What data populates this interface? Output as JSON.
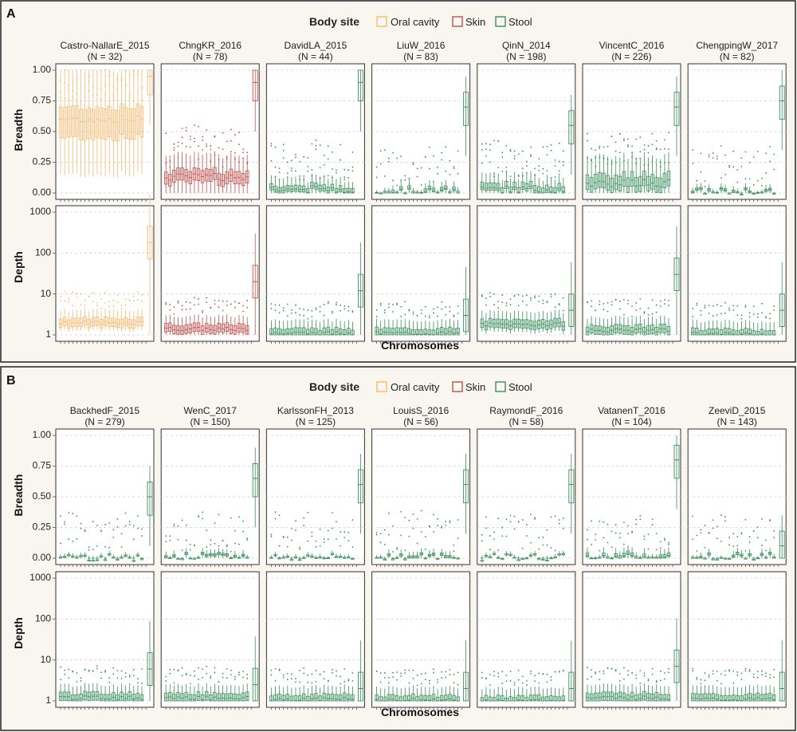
{
  "legend": {
    "title": "Body site",
    "items": [
      {
        "label": "Oral cavity",
        "color": "#f5b971"
      },
      {
        "label": "Skin",
        "color": "#c0504d"
      },
      {
        "label": "Stool",
        "color": "#3a8f5b"
      }
    ]
  },
  "x_axis_title": "Chromosomes",
  "row_labels": {
    "breadth": "Breadth",
    "depth": "Depth"
  },
  "breadth_ticks": [
    "1.00",
    "0.75",
    "0.50",
    "0.25",
    "0.00"
  ],
  "depth_ticks": [
    "1000",
    "100",
    "10",
    "1"
  ],
  "chart_data": [
    {
      "panel": "A",
      "type": "boxplot",
      "ylabel_top": "Breadth",
      "ylabel_bottom": "Depth",
      "xlabel": "Chromosomes",
      "breadth_ylim": [
        0,
        1
      ],
      "depth_scale": "log10",
      "depth_ylim": [
        1,
        1000
      ],
      "datasets": [
        {
          "name": "Castro-NallarE_2015",
          "n": "(N = 32)",
          "site": "oral",
          "breadth_median": 0.6,
          "breadth_q1": 0.45,
          "breadth_q3": 0.7,
          "depth_median": 2,
          "plasmid_breadth": 0.95,
          "plasmid_depth": 180
        },
        {
          "name": "ChngKR_2016",
          "n": "(N = 78)",
          "site": "skin",
          "breadth_median": 0.13,
          "breadth_q1": 0.08,
          "breadth_q3": 0.18,
          "depth_median": 1.4,
          "plasmid_breadth": 0.9,
          "plasmid_depth": 20
        },
        {
          "name": "DavidLA_2015",
          "n": "(N = 44)",
          "site": "stool",
          "breadth_median": 0.03,
          "breadth_q1": 0.01,
          "breadth_q3": 0.06,
          "depth_median": 1.1,
          "plasmid_breadth": 0.9,
          "plasmid_depth": 12
        },
        {
          "name": "LiuW_2016",
          "n": "(N = 83)",
          "site": "stool",
          "breadth_median": 0.01,
          "breadth_q1": 0.0,
          "breadth_q3": 0.03,
          "depth_median": 1.1,
          "plasmid_breadth": 0.7,
          "plasmid_depth": 3
        },
        {
          "name": "QinN_2014",
          "n": "(N = 198)",
          "site": "stool",
          "breadth_median": 0.03,
          "breadth_q1": 0.01,
          "breadth_q3": 0.07,
          "depth_median": 1.8,
          "plasmid_breadth": 0.55,
          "plasmid_depth": 4
        },
        {
          "name": "VincentC_2016",
          "n": "(N = 226)",
          "site": "stool",
          "breadth_median": 0.08,
          "breadth_q1": 0.03,
          "breadth_q3": 0.15,
          "depth_median": 1.3,
          "plasmid_breadth": 0.7,
          "plasmid_depth": 30
        },
        {
          "name": "ChengpingW_2017",
          "n": "(N = 82)",
          "site": "stool",
          "breadth_median": 0.01,
          "breadth_q1": 0.0,
          "breadth_q3": 0.02,
          "depth_median": 1.05,
          "plasmid_breadth": 0.75,
          "plasmid_depth": 4
        }
      ]
    },
    {
      "panel": "B",
      "type": "boxplot",
      "ylabel_top": "Breadth",
      "ylabel_bottom": "Depth",
      "xlabel": "Chromosomes",
      "breadth_ylim": [
        0,
        1
      ],
      "depth_scale": "log10",
      "depth_ylim": [
        1,
        1000
      ],
      "datasets": [
        {
          "name": "BackhedF_2015",
          "n": "(N = 279)",
          "site": "stool",
          "breadth_median": 0.0,
          "breadth_q1": 0.0,
          "breadth_q3": 0.01,
          "depth_median": 1.2,
          "plasmid_breadth": 0.5,
          "plasmid_depth": 6
        },
        {
          "name": "WenC_2017",
          "n": "(N = 150)",
          "site": "stool",
          "breadth_median": 0.01,
          "breadth_q1": 0.0,
          "breadth_q3": 0.02,
          "depth_median": 1.2,
          "plasmid_breadth": 0.65,
          "plasmid_depth": 2.5
        },
        {
          "name": "KarlssonFH_2013",
          "n": "(N = 125)",
          "site": "stool",
          "breadth_median": 0.0,
          "breadth_q1": 0.0,
          "breadth_q3": 0.01,
          "depth_median": 1.1,
          "plasmid_breadth": 0.6,
          "plasmid_depth": 2
        },
        {
          "name": "LouisS_2016",
          "n": "(N = 56)",
          "site": "stool",
          "breadth_median": 0.01,
          "breadth_q1": 0.0,
          "breadth_q3": 0.02,
          "depth_median": 1.05,
          "plasmid_breadth": 0.6,
          "plasmid_depth": 2
        },
        {
          "name": "RaymondF_2016",
          "n": "(N = 58)",
          "site": "stool",
          "breadth_median": 0.0,
          "breadth_q1": 0.0,
          "breadth_q3": 0.01,
          "depth_median": 1.0,
          "plasmid_breadth": 0.6,
          "plasmid_depth": 2
        },
        {
          "name": "VatanenT_2016",
          "n": "(N = 104)",
          "site": "stool",
          "breadth_median": 0.01,
          "breadth_q1": 0.0,
          "breadth_q3": 0.03,
          "depth_median": 1.2,
          "plasmid_breadth": 0.8,
          "plasmid_depth": 7
        },
        {
          "name": "ZeeviD_2015",
          "n": "(N = 143)",
          "site": "stool",
          "breadth_median": 0.01,
          "breadth_q1": 0.0,
          "breadth_q3": 0.02,
          "depth_median": 1.1,
          "plasmid_breadth": 0.1,
          "plasmid_depth": 2
        }
      ]
    }
  ]
}
